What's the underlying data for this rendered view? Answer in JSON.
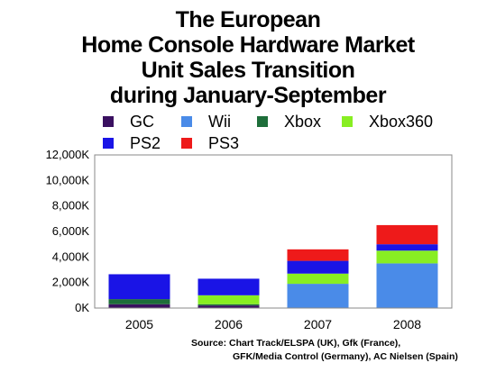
{
  "title_lines": [
    "The European",
    "Home Console Hardware Market",
    "Unit Sales Transition",
    "during January-September"
  ],
  "source_lines": [
    "Source:  Chart Track/ELSPA (UK), Gfk (France),",
    "GFK/Media Control (Germany), AC Nielsen (Spain)"
  ],
  "colors": {
    "GC": "#3a1060",
    "Wii": "#4a8be8",
    "Xbox": "#1e6e3a",
    "Xbox360": "#88ee22",
    "PS2": "#1a14e6",
    "PS3": "#ee1a1a"
  },
  "chart_data": {
    "type": "bar",
    "stacked": true,
    "categories": [
      "2005",
      "2006",
      "2007",
      "2008"
    ],
    "y_ticks": [
      "0K",
      "2,000K",
      "4,000K",
      "6,000K",
      "8,000K",
      "10,000K",
      "12,000K"
    ],
    "ylim": [
      0,
      12000
    ],
    "grid": false,
    "legend_position": "top",
    "series": [
      {
        "name": "GC",
        "values": [
          300,
          200,
          0,
          0
        ]
      },
      {
        "name": "Wii",
        "values": [
          0,
          0,
          1900,
          3500
        ]
      },
      {
        "name": "Xbox",
        "values": [
          400,
          100,
          0,
          0
        ]
      },
      {
        "name": "Xbox360",
        "values": [
          0,
          700,
          800,
          1000
        ]
      },
      {
        "name": "PS2",
        "values": [
          1950,
          1300,
          1000,
          500
        ]
      },
      {
        "name": "PS3",
        "values": [
          0,
          0,
          900,
          1500
        ]
      }
    ]
  }
}
